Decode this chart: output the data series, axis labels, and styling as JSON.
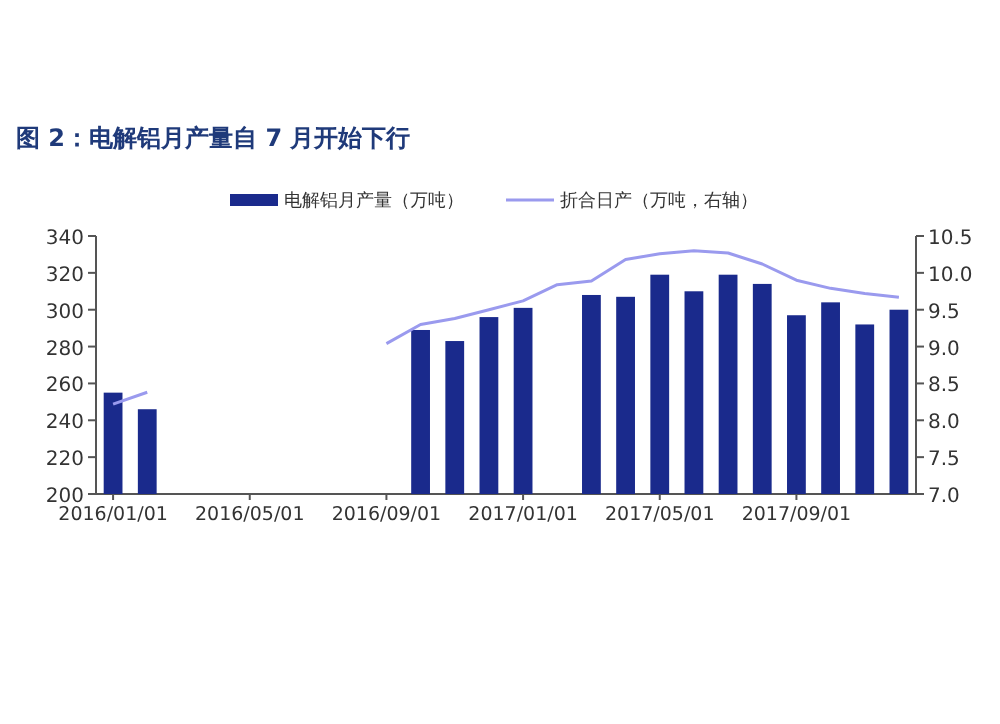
{
  "chart_data": {
    "type": "bar",
    "title": "图 2：电解铝月产量自 7 月开始下行",
    "categories": [
      "2016/01/01",
      null,
      null,
      null,
      "2016/05/01",
      null,
      null,
      null,
      "2016/09/01",
      null,
      null,
      null,
      "2017/01/01",
      null,
      null,
      null,
      "2017/05/01",
      null,
      null,
      null,
      "2017/09/01",
      null,
      null,
      null
    ],
    "series": [
      {
        "name": "电解铝月产量（万吨）",
        "color": "#1a2a8c",
        "values": [
          255,
          246,
          null,
          null,
          null,
          null,
          null,
          null,
          null,
          289,
          283,
          296,
          301,
          null,
          308,
          307,
          319,
          310,
          319,
          314,
          297,
          304,
          292,
          300
        ]
      },
      {
        "name": "折合日产（万吨，右轴）",
        "type": "line",
        "axis": "y2",
        "color": "#9a9aee",
        "values": [
          8.22,
          8.38,
          null,
          null,
          null,
          null,
          null,
          null,
          9.04,
          9.3,
          9.38,
          9.5,
          9.62,
          9.84,
          9.89,
          10.18,
          10.26,
          10.3,
          10.27,
          10.12,
          9.9,
          9.79,
          9.72,
          9.67
        ]
      }
    ],
    "ylim": [
      200,
      340
    ],
    "yticks": [
      200,
      220,
      240,
      260,
      280,
      300,
      320,
      340
    ],
    "y2lim": [
      7.0,
      10.5
    ],
    "y2ticks": [
      {
        "value": 7,
        "label": "7.0"
      },
      {
        "value": 7.5,
        "label": "7.5"
      },
      {
        "value": 8,
        "label": "8.0"
      },
      {
        "value": 8.5,
        "label": "8.5"
      },
      {
        "value": 9,
        "label": "9.0"
      },
      {
        "value": 9.5,
        "label": "9.5"
      },
      {
        "value": 10,
        "label": "10.0"
      },
      {
        "value": 10.5,
        "label": "10.5"
      }
    ],
    "legend": "top",
    "grid": false
  }
}
